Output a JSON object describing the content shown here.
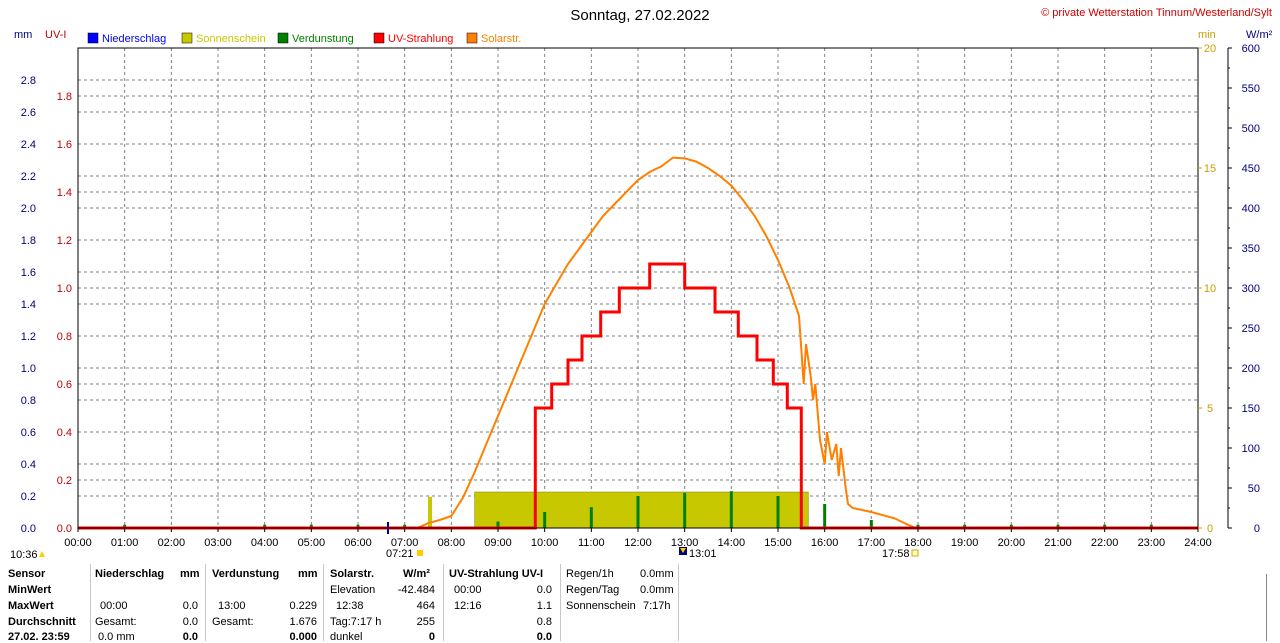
{
  "title": "Sonntag, 27.02.2022",
  "copyright": "© private Wetterstation Tinnum/Westerland/Sylt",
  "colors": {
    "niederschlag": "#0000ff",
    "sonnenschein": "#c8c800",
    "verdunstung": "#008000",
    "uv": "#ff0000",
    "solar": "#ff8000",
    "axis_mm": "#000080",
    "axis_uv": "#c00000",
    "axis_min": "#c8a000",
    "axis_wm2": "#000080",
    "grid": "#808080",
    "sun_block": "#c8c800"
  },
  "axis_titles": {
    "mm": "mm",
    "uv": "UV-I",
    "min": "min",
    "wm2": "W/m²"
  },
  "legend": [
    {
      "label": "Niederschlag",
      "color": "#0000ff"
    },
    {
      "label": "Sonnenschein",
      "color": "#c8c800"
    },
    {
      "label": "Verdunstung",
      "color": "#008000"
    },
    {
      "label": "UV-Strahlung",
      "color": "#ff0000"
    },
    {
      "label": "Solarstr.",
      "color": "#ff8000"
    }
  ],
  "markers": {
    "left_time": "10:36",
    "sunrise": "07:21",
    "noon": "13:01",
    "sunset": "17:58"
  },
  "chart_data": {
    "type": "line",
    "x_unit": "hours",
    "x_range": [
      0,
      24
    ],
    "x_ticks": [
      "00:00",
      "01:00",
      "02:00",
      "03:00",
      "04:00",
      "05:00",
      "06:00",
      "07:00",
      "08:00",
      "09:00",
      "10:00",
      "11:00",
      "12:00",
      "13:00",
      "14:00",
      "15:00",
      "16:00",
      "17:00",
      "18:00",
      "19:00",
      "20:00",
      "21:00",
      "22:00",
      "23:00",
      "24:00"
    ],
    "axes": {
      "mm": {
        "range": [
          0,
          3.0
        ],
        "ticks": [
          "0.0",
          "0.2",
          "0.4",
          "0.6",
          "0.8",
          "1.0",
          "1.2",
          "1.4",
          "1.6",
          "1.8",
          "2.0",
          "2.2",
          "2.4",
          "2.6",
          "2.8"
        ]
      },
      "uv": {
        "range": [
          0,
          2.0
        ],
        "ticks": [
          "0.0",
          "0.2",
          "0.4",
          "0.6",
          "0.8",
          "1.0",
          "1.2",
          "1.4",
          "1.6",
          "1.8"
        ]
      },
      "min": {
        "range": [
          0,
          20
        ],
        "ticks": [
          "0",
          "5",
          "10",
          "15",
          "20"
        ]
      },
      "wm2": {
        "range": [
          0,
          600
        ],
        "ticks": [
          "0",
          "50",
          "100",
          "150",
          "200",
          "250",
          "300",
          "350",
          "400",
          "450",
          "500",
          "550",
          "600"
        ]
      }
    },
    "sunshine_block": {
      "from": 8.5,
      "to": 15.65,
      "value_min": 1.5
    },
    "uv_steps": [
      [
        0,
        0
      ],
      [
        9.8,
        0
      ],
      [
        9.8,
        0.5
      ],
      [
        10.15,
        0.5
      ],
      [
        10.15,
        0.6
      ],
      [
        10.5,
        0.6
      ],
      [
        10.5,
        0.7
      ],
      [
        10.8,
        0.7
      ],
      [
        10.8,
        0.8
      ],
      [
        11.2,
        0.8
      ],
      [
        11.2,
        0.9
      ],
      [
        11.6,
        0.9
      ],
      [
        11.6,
        1.0
      ],
      [
        12.25,
        1.0
      ],
      [
        12.25,
        1.1
      ],
      [
        13.0,
        1.1
      ],
      [
        13.0,
        1.0
      ],
      [
        13.65,
        1.0
      ],
      [
        13.65,
        0.9
      ],
      [
        14.15,
        0.9
      ],
      [
        14.15,
        0.8
      ],
      [
        14.55,
        0.8
      ],
      [
        14.55,
        0.7
      ],
      [
        14.9,
        0.7
      ],
      [
        14.9,
        0.6
      ],
      [
        15.2,
        0.6
      ],
      [
        15.2,
        0.5
      ],
      [
        15.5,
        0.5
      ],
      [
        15.5,
        0
      ],
      [
        24,
        0
      ]
    ],
    "solar": [
      [
        0,
        0
      ],
      [
        7.25,
        0
      ],
      [
        7.35,
        2
      ],
      [
        7.5,
        6
      ],
      [
        7.75,
        10
      ],
      [
        8.0,
        15
      ],
      [
        8.25,
        38
      ],
      [
        8.5,
        70
      ],
      [
        8.75,
        105
      ],
      [
        9.0,
        140
      ],
      [
        9.25,
        175
      ],
      [
        9.5,
        210
      ],
      [
        9.75,
        245
      ],
      [
        10.0,
        280
      ],
      [
        10.25,
        305
      ],
      [
        10.5,
        330
      ],
      [
        10.75,
        350
      ],
      [
        11.0,
        370
      ],
      [
        11.25,
        390
      ],
      [
        11.5,
        405
      ],
      [
        11.75,
        420
      ],
      [
        12.0,
        435
      ],
      [
        12.25,
        445
      ],
      [
        12.5,
        452
      ],
      [
        12.75,
        463
      ],
      [
        13.0,
        462
      ],
      [
        13.25,
        458
      ],
      [
        13.5,
        450
      ],
      [
        13.75,
        440
      ],
      [
        14.0,
        428
      ],
      [
        14.25,
        410
      ],
      [
        14.5,
        390
      ],
      [
        14.75,
        365
      ],
      [
        15.0,
        335
      ],
      [
        15.25,
        300
      ],
      [
        15.45,
        265
      ],
      [
        15.55,
        180
      ],
      [
        15.6,
        230
      ],
      [
        15.7,
        190
      ],
      [
        15.75,
        160
      ],
      [
        15.8,
        180
      ],
      [
        15.9,
        110
      ],
      [
        16.0,
        80
      ],
      [
        16.05,
        120
      ],
      [
        16.15,
        85
      ],
      [
        16.25,
        105
      ],
      [
        16.3,
        65
      ],
      [
        16.35,
        100
      ],
      [
        16.45,
        50
      ],
      [
        16.5,
        30
      ],
      [
        16.6,
        25
      ],
      [
        17.0,
        20
      ],
      [
        17.5,
        12
      ],
      [
        17.75,
        5
      ],
      [
        17.95,
        0
      ],
      [
        24,
        0
      ]
    ],
    "verdunstung_spikes": [
      [
        1.0,
        0.02
      ],
      [
        4.0,
        0.02
      ],
      [
        5.0,
        0.02
      ],
      [
        6.0,
        0.02
      ],
      [
        7.0,
        0.02
      ],
      [
        9.0,
        0.04
      ],
      [
        10.0,
        0.1
      ],
      [
        11.0,
        0.13
      ],
      [
        12.0,
        0.2
      ],
      [
        13.0,
        0.22
      ],
      [
        14.0,
        0.23
      ],
      [
        15.0,
        0.2
      ],
      [
        16.0,
        0.15
      ],
      [
        17.0,
        0.05
      ],
      [
        18.0,
        0.02
      ],
      [
        19.0,
        0.02
      ],
      [
        20.0,
        0.02
      ],
      [
        21.0,
        0.02
      ],
      [
        22.0,
        0.02
      ],
      [
        23.0,
        0.02
      ]
    ]
  },
  "stats": {
    "headers": {
      "sensor": "Sensor",
      "niederschlag": "Niederschlag",
      "niederschlag_unit": "mm",
      "verdunstung": "Verdunstung",
      "verdunstung_unit": "mm",
      "solar": "Solarstr.",
      "solar_unit": "W/m²",
      "uv": "UV-Strahlung UV-I"
    },
    "row_labels": [
      "MinWert",
      "MaxWert",
      "Durchschnitt",
      "27.02. 23:59"
    ],
    "niederschlag": {
      "max_time": "00:00",
      "max_val": "0.0",
      "gesamt_label": "Gesamt:",
      "gesamt_val": "0.0",
      "last_val": "0.0 mm",
      "last_bold": "0.0"
    },
    "verdunstung": {
      "max_time": "13:00",
      "max_val": "0.229",
      "gesamt_label": "Gesamt:",
      "gesamt_val": "1.676",
      "last_bold": "0.000"
    },
    "solar": {
      "elevation_label": "Elevation",
      "elevation_val": "-42.484",
      "max_time": "12:38",
      "max_val": "464",
      "tag_label": "Tag:7:17 h",
      "tag_val": "255",
      "dunkel_label": "dunkel",
      "dunkel_val": "0"
    },
    "uv": {
      "min_time": "00:00",
      "min_val": "0.0",
      "max_time": "12:16",
      "max_val": "1.1",
      "avg_val": "0.8",
      "last_val": "0.0"
    },
    "extra": {
      "regen1h_label": "Regen/1h",
      "regen1h_val": "0.0mm",
      "regentag_label": "Regen/Tag",
      "regentag_val": "0.0mm",
      "sonne_label": "Sonnenschein",
      "sonne_val": "7:17h"
    }
  }
}
